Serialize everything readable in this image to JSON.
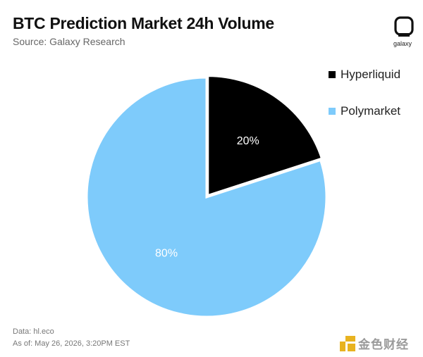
{
  "header": {
    "title": "BTC Prediction Market 24h Volume",
    "subtitle": "Source: Galaxy Research"
  },
  "brand": {
    "logo_text": "galaxy",
    "logo_icon": "galaxy-logo-icon"
  },
  "chart_data": {
    "type": "pie",
    "title": "BTC Prediction Market 24h Volume",
    "slices": [
      {
        "name": "Hyperliquid",
        "value": 20,
        "label": "20%",
        "color": "#000000"
      },
      {
        "name": "Polymarket",
        "value": 80,
        "label": "80%",
        "color": "#7ecbfb"
      }
    ],
    "legend_position": "top-right",
    "start_angle": "12 o'clock",
    "direction": "clockwise",
    "exploded_slice": "Hyperliquid"
  },
  "footer": {
    "data_source": "Data: hl.eco",
    "as_of": "As of: May 26, 2026, 3:20PM EST"
  },
  "watermark": {
    "text": "金色财经"
  }
}
